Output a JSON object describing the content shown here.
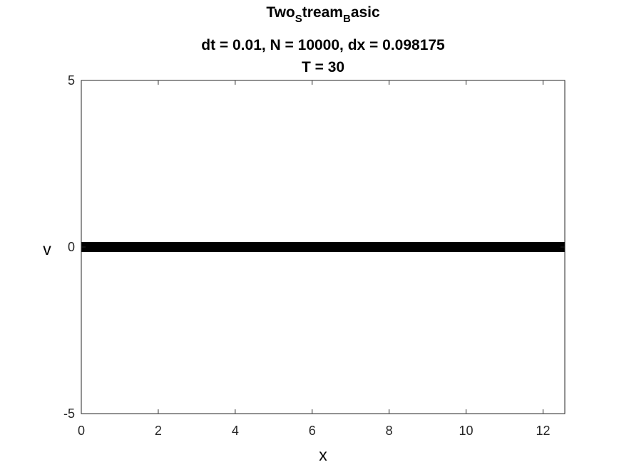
{
  "title": {
    "main_prefix": "Two",
    "main_sub1": "S",
    "main_mid": "tream",
    "main_sub2": "B",
    "main_suffix": "asic",
    "params": "dt = 0.01, N = 10000, dx = 0.098175",
    "time": "T = 30"
  },
  "chart_data": {
    "type": "scatter",
    "xlabel": "x",
    "ylabel": "v",
    "xlim": [
      0,
      12.566
    ],
    "ylim": [
      -5,
      5
    ],
    "xticks": [
      0,
      2,
      4,
      6,
      8,
      10,
      12
    ],
    "yticks": [
      -5,
      0,
      5
    ],
    "grid": false,
    "series": [
      {
        "color": "#000000",
        "x_range": [
          0,
          12.566
        ],
        "v_center": 0,
        "v_band": [
          -0.15,
          0.15
        ]
      }
    ]
  }
}
